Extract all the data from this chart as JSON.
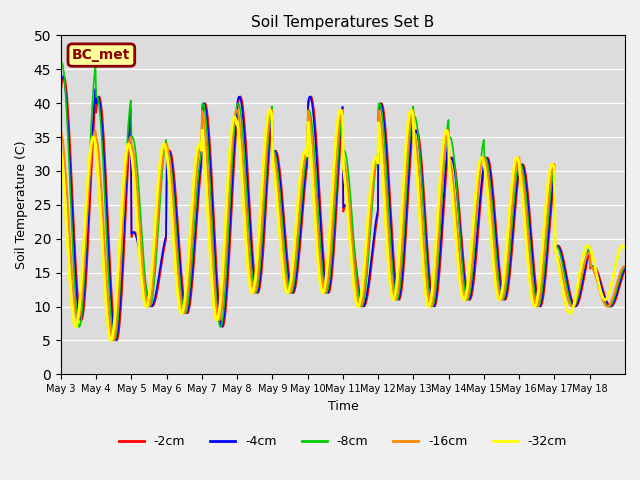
{
  "title": "Soil Temperatures Set B",
  "xlabel": "Time",
  "ylabel": "Soil Temperature (C)",
  "ylim": [
    0,
    50
  ],
  "plot_bg": "#dcdcdc",
  "fig_bg": "#f0f0f0",
  "label_box_text": "BC_met",
  "label_box_facecolor": "#ffff99",
  "label_box_edgecolor": "#8b0000",
  "label_box_textcolor": "#8b0000",
  "series": [
    {
      "label": "-2cm",
      "color": "#ff0000",
      "lw": 1.2
    },
    {
      "label": "-4cm",
      "color": "#0000ff",
      "lw": 1.2
    },
    {
      "label": "-8cm",
      "color": "#00cc00",
      "lw": 1.2
    },
    {
      "label": "-16cm",
      "color": "#ff8800",
      "lw": 1.5
    },
    {
      "label": "-32cm",
      "color": "#ffff00",
      "lw": 2.0
    }
  ],
  "x_tick_labels": [
    "May 3",
    "May 4",
    "May 5",
    "May 6",
    "May 7",
    "May 8",
    "May 9",
    "May 10",
    "May 11",
    "May 12",
    "May 13",
    "May 14",
    "May 15",
    "May 16",
    "May 17",
    "May 18"
  ],
  "days": 16,
  "n_per_day": 48,
  "daily_peaks_2cm": [
    44,
    41,
    21,
    33,
    40,
    41,
    33,
    41,
    25,
    40,
    36,
    32,
    32,
    31,
    19,
    16
  ],
  "daily_mins_2cm": [
    8,
    5,
    10,
    9,
    7,
    12,
    12,
    12,
    10,
    11,
    10,
    11,
    11,
    10,
    10,
    10
  ],
  "daily_peaks_8cm": [
    46,
    41,
    35,
    33,
    40,
    40,
    33,
    39,
    33,
    40,
    38,
    35,
    32,
    31,
    19,
    16
  ],
  "daily_mins_8cm": [
    7,
    5,
    10,
    9,
    7,
    12,
    12,
    12,
    10,
    11,
    10,
    11,
    11,
    10,
    10,
    10
  ],
  "daily_peaks_16cm": [
    36,
    35,
    34,
    34,
    39,
    39,
    33,
    39,
    32,
    39,
    36,
    32,
    32,
    31,
    18,
    16
  ],
  "daily_mins_16cm": [
    8,
    5,
    10,
    9,
    8,
    12,
    12,
    12,
    10,
    11,
    10,
    11,
    11,
    10,
    10,
    10
  ],
  "daily_peaks_32cm": [
    35,
    34,
    34,
    34,
    38,
    39,
    33,
    39,
    32,
    39,
    36,
    32,
    32,
    31,
    19,
    19
  ],
  "daily_mins_32cm": [
    7,
    5,
    10,
    9,
    8,
    12,
    12,
    12,
    10,
    11,
    10,
    11,
    11,
    10,
    9,
    11
  ]
}
